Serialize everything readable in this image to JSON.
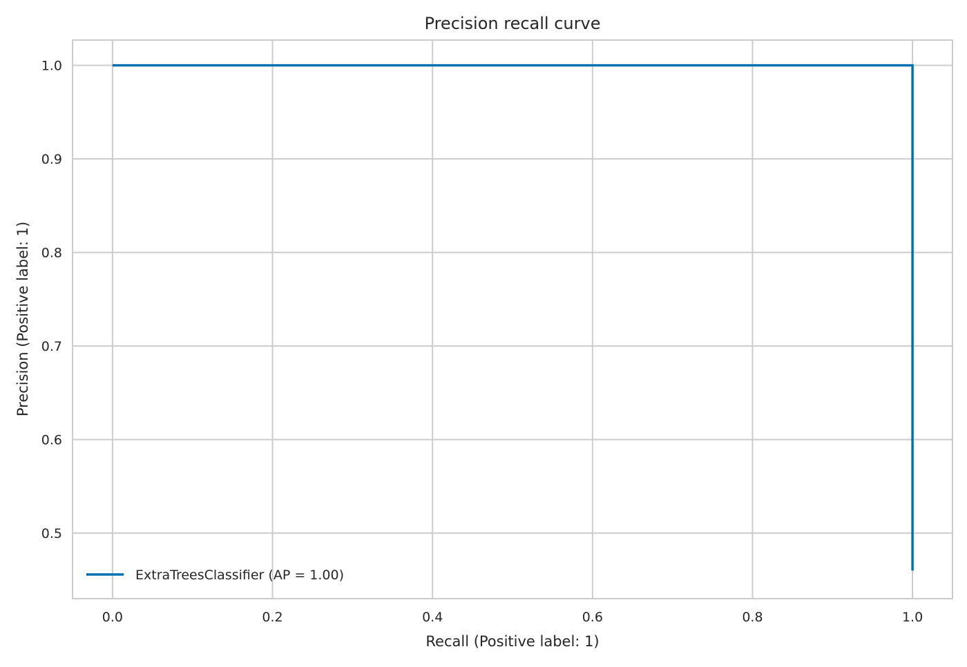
{
  "chart_data": {
    "type": "line",
    "title": "Precision recall curve",
    "xlabel": "Recall (Positive label: 1)",
    "ylabel": "Precision (Positive label: 1)",
    "xlim": [
      -0.05,
      1.05
    ],
    "ylim": [
      0.43,
      1.027
    ],
    "xticks": [
      0.0,
      0.2,
      0.4,
      0.6,
      0.8,
      1.0
    ],
    "xtick_labels": [
      "0.0",
      "0.2",
      "0.4",
      "0.6",
      "0.8",
      "1.0"
    ],
    "yticks": [
      0.5,
      0.6,
      0.7,
      0.8,
      0.9,
      1.0
    ],
    "ytick_labels": [
      "0.5",
      "0.6",
      "0.7",
      "0.8",
      "0.9",
      "1.0"
    ],
    "grid": true,
    "legend_position": "lower-left",
    "series": [
      {
        "name": "ExtraTreesClassifier (AP = 1.00)",
        "color": "#0072b2",
        "drawstyle": "steps-post",
        "x": [
          0.0,
          1.0,
          1.0
        ],
        "y": [
          1.0,
          1.0,
          0.46
        ]
      }
    ]
  }
}
